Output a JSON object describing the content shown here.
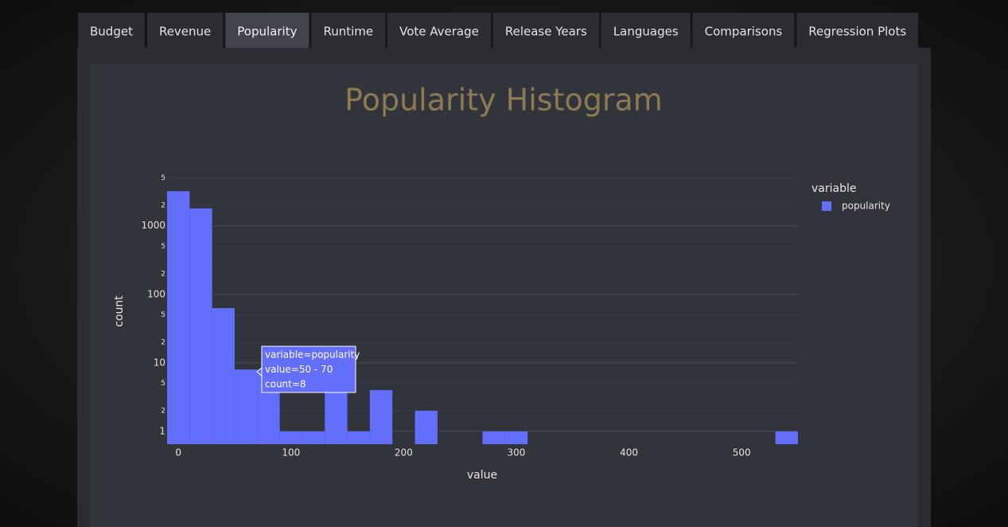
{
  "tabs": [
    "Budget",
    "Revenue",
    "Popularity",
    "Runtime",
    "Vote Average",
    "Release Years",
    "Languages",
    "Comparisons",
    "Regression Plots"
  ],
  "active_tab": "Popularity",
  "chart_data": {
    "type": "histogram",
    "title": "Popularity Histogram",
    "x_label": "value",
    "y_label": "count",
    "y_log": true,
    "grid": true,
    "legend_title": "variable",
    "legend_position": "right",
    "series": [
      {
        "name": "popularity",
        "color": "#636efa"
      }
    ],
    "bins": [
      -10,
      10,
      30,
      50,
      70,
      90,
      110,
      130,
      150,
      170,
      190,
      210,
      230,
      250,
      270,
      290,
      310,
      330,
      350,
      370,
      390,
      410,
      430,
      450,
      470,
      490,
      510,
      530,
      550
    ],
    "counts": [
      3200,
      1800,
      63,
      8,
      8,
      1,
      1,
      4,
      1,
      4,
      0,
      2,
      0,
      0,
      1,
      1,
      0,
      0,
      0,
      0,
      0,
      0,
      0,
      0,
      0,
      0,
      0,
      1
    ],
    "xlim": [
      -10,
      550
    ],
    "xticks": [
      0,
      100,
      200,
      300,
      400,
      500
    ],
    "ylim": [
      0.65,
      5500
    ],
    "yticks": [
      1,
      {
        "value": 2,
        "label": "2"
      },
      {
        "value": 5,
        "label": "5"
      },
      10,
      {
        "value": 20,
        "label": "2"
      },
      {
        "value": 50,
        "label": "5"
      },
      100,
      {
        "value": 200,
        "label": "2"
      },
      {
        "value": 500,
        "label": "5"
      },
      1000,
      {
        "value": 2000,
        "label": "2"
      },
      {
        "value": 5000,
        "label": "5"
      }
    ],
    "tooltip": [
      "variable=popularity",
      "value=50 - 70",
      "count=8"
    ]
  }
}
